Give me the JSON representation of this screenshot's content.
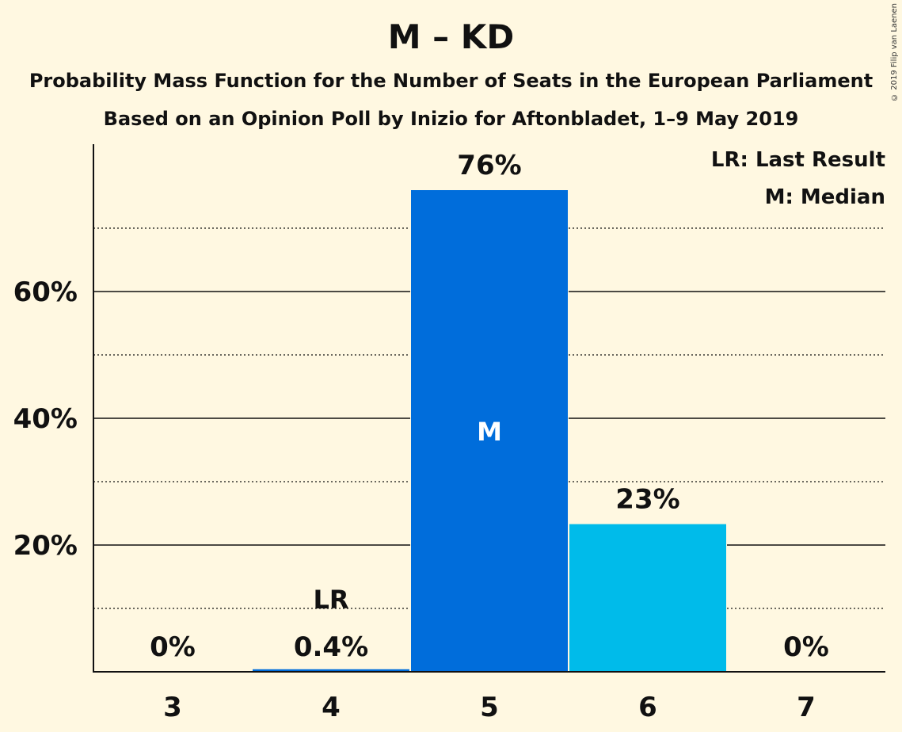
{
  "title": "M – KD",
  "subtitle_1": "Probability Mass Function for the Number of Seats in the European Parliament",
  "subtitle_2": "Based on an Opinion Poll by Inizio for Aftonbladet, 1–9 May 2019",
  "copyright": "© 2019 Filip van Laenen",
  "legend": {
    "last_result": "LR: Last Result",
    "median": "M: Median"
  },
  "colors": {
    "background": "#fff8e1",
    "median_bar": "#006ddb",
    "bar": "#00bbea",
    "last_result_bar": "#006ddb"
  },
  "chart_data": {
    "type": "bar",
    "categories": [
      "3",
      "4",
      "5",
      "6",
      "7"
    ],
    "values": [
      0,
      0.4,
      76,
      23.3,
      0
    ],
    "value_labels": [
      "0%",
      "0.4%",
      "76%",
      "23%",
      "0%"
    ],
    "ylim": [
      0,
      83
    ],
    "yticks": [
      20,
      40,
      60
    ],
    "ytick_labels": [
      "20%",
      "40%",
      "60%"
    ],
    "minor_gridlines": [
      10,
      30,
      50,
      70
    ],
    "markers": [
      {
        "category": "4",
        "label": "LR"
      },
      {
        "category": "5",
        "label": "M"
      }
    ],
    "median_category": "5",
    "grid": true,
    "legend_position": "top-right"
  }
}
